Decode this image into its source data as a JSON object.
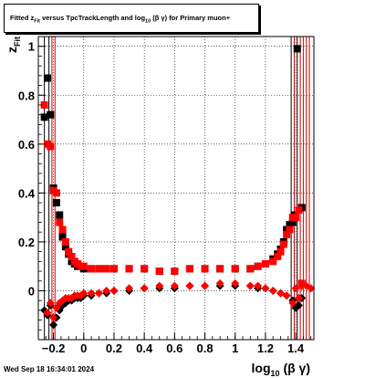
{
  "title": {
    "prefix": "Fitted",
    "var": "z",
    "var_sub": "Fit",
    "middle": "versus TpcTrackLength and log",
    "log_sub": "10",
    "beta_gamma": "(β γ)",
    "suffix": "for Primary muon+"
  },
  "timestamp": "Wed Sep 18 16:34:01 2024",
  "chart_data": {
    "type": "scatter",
    "xlabel": "log10 (β γ)",
    "xlabel_main": "log",
    "xlabel_sub": "10",
    "xlabel_tail": " (β γ)",
    "ylabel": "zFit",
    "ylabel_main": "z",
    "ylabel_sub": "Fit",
    "xlim": [
      -0.3,
      1.52
    ],
    "ylim": [
      -0.2,
      1.04
    ],
    "xticks": [
      -0.2,
      0,
      0.2,
      0.4,
      0.6,
      0.8,
      1,
      1.2,
      1.4
    ],
    "xtick_labels": [
      "−0.2",
      "0",
      "0.2",
      "0.4",
      "0.6",
      "0.8",
      "1",
      "1.2",
      "1.4"
    ],
    "yticks": [
      0,
      0.2,
      0.4,
      0.6,
      0.8,
      1
    ],
    "ytick_labels": [
      "0",
      "0.2",
      "0.4",
      "0.6",
      "0.8",
      "1"
    ],
    "grid": true,
    "colors": {
      "black_series": "#000000",
      "red_series": "#ff0000",
      "error_bars": "#cc0000"
    },
    "series": [
      {
        "marker": "square",
        "color": "#000000",
        "points": [
          [
            -0.26,
            0.71
          ],
          [
            -0.24,
            0.87
          ],
          [
            -0.22,
            0.72
          ],
          [
            -0.2,
            0.42
          ],
          [
            -0.18,
            0.36
          ],
          [
            -0.16,
            0.31
          ],
          [
            -0.14,
            0.22
          ],
          [
            -0.12,
            0.18
          ],
          [
            -0.1,
            0.15
          ],
          [
            -0.08,
            0.12
          ],
          [
            -0.06,
            0.11
          ],
          [
            -0.04,
            0.1
          ],
          [
            -0.02,
            0.1
          ],
          [
            0.0,
            0.09
          ],
          [
            0.05,
            0.09
          ],
          [
            0.1,
            0.09
          ],
          [
            0.15,
            0.09
          ],
          [
            0.2,
            0.09
          ],
          [
            0.3,
            0.09
          ],
          [
            0.4,
            0.09
          ],
          [
            0.5,
            0.08
          ],
          [
            0.6,
            0.08
          ],
          [
            0.7,
            0.09
          ],
          [
            0.8,
            0.09
          ],
          [
            0.9,
            0.09
          ],
          [
            1.0,
            0.09
          ],
          [
            1.1,
            0.09
          ],
          [
            1.15,
            0.1
          ],
          [
            1.2,
            0.11
          ],
          [
            1.25,
            0.13
          ],
          [
            1.28,
            0.15
          ],
          [
            1.3,
            0.17
          ],
          [
            1.32,
            0.2
          ],
          [
            1.34,
            0.25
          ],
          [
            1.36,
            0.27
          ],
          [
            1.38,
            0.28
          ],
          [
            1.39,
            0.31
          ],
          [
            1.41,
            0.99
          ],
          [
            1.44,
            0.34
          ]
        ]
      },
      {
        "marker": "square",
        "color": "#ff0000",
        "points": [
          [
            -0.26,
            0.76
          ],
          [
            -0.24,
            0.6
          ],
          [
            -0.22,
            0.59
          ],
          [
            -0.2,
            0.41
          ],
          [
            -0.18,
            0.4
          ],
          [
            -0.16,
            0.28
          ],
          [
            -0.14,
            0.25
          ],
          [
            -0.12,
            0.2
          ],
          [
            -0.1,
            0.16
          ],
          [
            -0.08,
            0.14
          ],
          [
            -0.06,
            0.12
          ],
          [
            -0.04,
            0.11
          ],
          [
            -0.02,
            0.1
          ],
          [
            0.0,
            0.1
          ],
          [
            0.05,
            0.09
          ],
          [
            0.1,
            0.09
          ],
          [
            0.15,
            0.09
          ],
          [
            0.2,
            0.09
          ],
          [
            0.3,
            0.09
          ],
          [
            0.4,
            0.09
          ],
          [
            0.5,
            0.08
          ],
          [
            0.6,
            0.08
          ],
          [
            0.7,
            0.09
          ],
          [
            0.8,
            0.09
          ],
          [
            0.9,
            0.09
          ],
          [
            1.0,
            0.09
          ],
          [
            1.1,
            0.09
          ],
          [
            1.15,
            0.1
          ],
          [
            1.2,
            0.11
          ],
          [
            1.25,
            0.12
          ],
          [
            1.28,
            0.14
          ],
          [
            1.3,
            0.16
          ],
          [
            1.32,
            0.19
          ],
          [
            1.34,
            0.23
          ],
          [
            1.36,
            0.25
          ],
          [
            1.38,
            0.3
          ],
          [
            1.4,
            0.3
          ],
          [
            1.42,
            0.33
          ],
          [
            1.44,
            0.03
          ]
        ]
      },
      {
        "marker": "diamond",
        "color": "#000000",
        "points": [
          [
            -0.26,
            -0.08
          ],
          [
            -0.24,
            -0.1
          ],
          [
            -0.22,
            -0.06
          ],
          [
            -0.2,
            -0.14
          ],
          [
            -0.18,
            -0.11
          ],
          [
            -0.16,
            -0.08
          ],
          [
            -0.14,
            -0.06
          ],
          [
            -0.12,
            -0.05
          ],
          [
            -0.1,
            -0.04
          ],
          [
            -0.08,
            -0.04
          ],
          [
            -0.06,
            -0.03
          ],
          [
            -0.04,
            -0.03
          ],
          [
            -0.02,
            -0.03
          ],
          [
            0.0,
            -0.02
          ],
          [
            0.05,
            -0.02
          ],
          [
            0.1,
            -0.01
          ],
          [
            0.15,
            -0.01
          ],
          [
            0.2,
            0.0
          ],
          [
            0.3,
            0.0
          ],
          [
            0.4,
            0.01
          ],
          [
            0.5,
            0.01
          ],
          [
            0.6,
            0.01
          ],
          [
            0.7,
            0.02
          ],
          [
            0.8,
            0.02
          ],
          [
            0.9,
            0.02
          ],
          [
            1.0,
            0.02
          ],
          [
            1.1,
            0.02
          ],
          [
            1.15,
            0.01
          ],
          [
            1.2,
            0.01
          ],
          [
            1.25,
            0.0
          ],
          [
            1.3,
            -0.01
          ],
          [
            1.34,
            -0.02
          ],
          [
            1.38,
            -0.04
          ],
          [
            1.4,
            -0.07
          ],
          [
            1.42,
            -0.06
          ],
          [
            1.44,
            -0.03
          ]
        ]
      },
      {
        "marker": "diamond",
        "color": "#ff0000",
        "points": [
          [
            -0.24,
            -0.09
          ],
          [
            -0.22,
            -0.05
          ],
          [
            -0.2,
            -0.11
          ],
          [
            -0.18,
            -0.07
          ],
          [
            -0.16,
            -0.05
          ],
          [
            -0.14,
            -0.04
          ],
          [
            -0.12,
            -0.03
          ],
          [
            -0.1,
            -0.03
          ],
          [
            -0.08,
            -0.03
          ],
          [
            -0.06,
            -0.02
          ],
          [
            -0.04,
            -0.02
          ],
          [
            -0.02,
            -0.02
          ],
          [
            0.0,
            -0.01
          ],
          [
            0.05,
            -0.01
          ],
          [
            0.1,
            -0.01
          ],
          [
            0.15,
            0.0
          ],
          [
            0.2,
            0.0
          ],
          [
            0.3,
            0.01
          ],
          [
            0.4,
            0.01
          ],
          [
            0.5,
            0.02
          ],
          [
            0.6,
            0.02
          ],
          [
            0.7,
            0.02
          ],
          [
            0.8,
            0.02
          ],
          [
            0.9,
            0.03
          ],
          [
            1.0,
            0.03
          ],
          [
            1.1,
            0.02
          ],
          [
            1.15,
            0.02
          ],
          [
            1.2,
            0.01
          ],
          [
            1.25,
            0.0
          ],
          [
            1.3,
            -0.01
          ],
          [
            1.34,
            -0.02
          ],
          [
            1.38,
            -0.05
          ],
          [
            1.4,
            0.01
          ],
          [
            1.42,
            -0.03
          ],
          [
            1.44,
            0.02
          ],
          [
            1.47,
            0.02
          ],
          [
            1.5,
            0.01
          ]
        ]
      }
    ],
    "error_bars": [
      {
        "x": -0.26,
        "color": "#000000"
      },
      {
        "x": -0.23,
        "color": "#000000"
      },
      {
        "x": -0.21,
        "color": "#cc0000"
      },
      {
        "x": -0.19,
        "color": "#cc0000"
      },
      {
        "x": 1.37,
        "color": "#000000"
      },
      {
        "x": 1.39,
        "color": "#cc0000"
      },
      {
        "x": 1.41,
        "color": "#000000"
      },
      {
        "x": 1.43,
        "color": "#cc0000"
      },
      {
        "x": 1.45,
        "color": "#cc0000"
      },
      {
        "x": 1.47,
        "color": "#cc0000"
      },
      {
        "x": 1.49,
        "color": "#cc0000"
      }
    ]
  }
}
